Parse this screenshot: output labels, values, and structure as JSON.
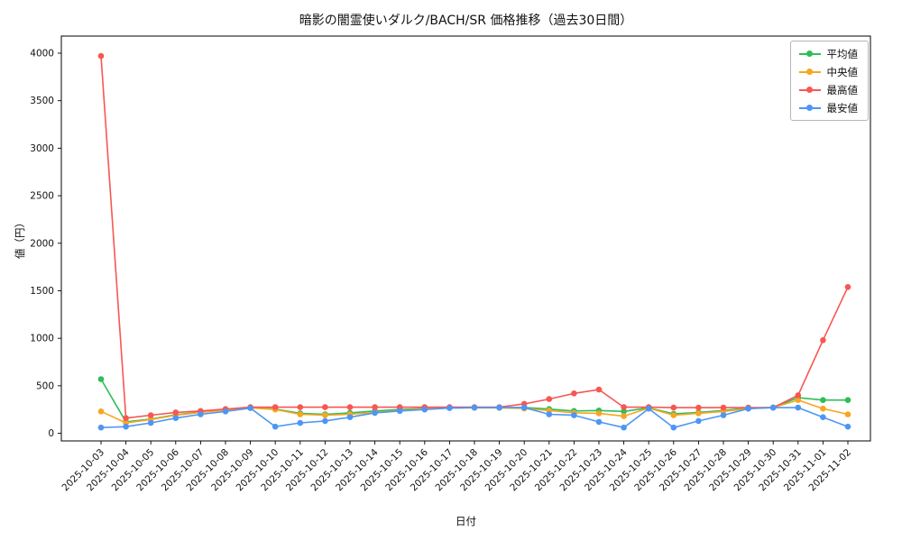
{
  "chart_data": {
    "type": "line",
    "title": "暗影の闇霊使いダルク/BACH/SR 価格推移（過去30日間）",
    "xlabel": "日付",
    "ylabel": "値（円）",
    "grid": false,
    "legend_position": "upper right",
    "ylim": [
      -80,
      4180
    ],
    "yticks": [
      0,
      500,
      1000,
      1500,
      2000,
      2500,
      3000,
      3500,
      4000
    ],
    "x": [
      "2025-10-03",
      "2025-10-04",
      "2025-10-05",
      "2025-10-06",
      "2025-10-07",
      "2025-10-08",
      "2025-10-09",
      "2025-10-10",
      "2025-10-11",
      "2025-10-12",
      "2025-10-13",
      "2025-10-14",
      "2025-10-15",
      "2025-10-16",
      "2025-10-17",
      "2025-10-18",
      "2025-10-19",
      "2025-10-20",
      "2025-10-21",
      "2025-10-22",
      "2025-10-23",
      "2025-10-24",
      "2025-10-25",
      "2025-10-26",
      "2025-10-27",
      "2025-10-28",
      "2025-10-29",
      "2025-10-30",
      "2025-10-31",
      "2025-11-01",
      "2025-11-02"
    ],
    "series": [
      {
        "name": "平均値",
        "color": "#2ebd59",
        "values": [
          570,
          120,
          150,
          195,
          225,
          250,
          270,
          255,
          210,
          200,
          215,
          235,
          250,
          262,
          270,
          270,
          270,
          272,
          255,
          235,
          240,
          230,
          268,
          205,
          220,
          240,
          265,
          272,
          375,
          350,
          350
        ]
      },
      {
        "name": "中央値",
        "color": "#f6a623",
        "values": [
          230,
          110,
          145,
          190,
          220,
          245,
          268,
          250,
          200,
          190,
          200,
          220,
          240,
          258,
          268,
          268,
          268,
          262,
          240,
          215,
          210,
          180,
          265,
          190,
          210,
          230,
          260,
          270,
          350,
          260,
          200
        ]
      },
      {
        "name": "最高値",
        "color": "#f85653",
        "values": [
          3970,
          160,
          190,
          220,
          235,
          255,
          275,
          275,
          275,
          275,
          275,
          275,
          275,
          275,
          275,
          275,
          275,
          310,
          360,
          420,
          460,
          275,
          275,
          270,
          270,
          270,
          270,
          270,
          400,
          980,
          1540
        ]
      },
      {
        "name": "最安値",
        "color": "#4d96f5",
        "values": [
          60,
          70,
          110,
          160,
          200,
          230,
          265,
          70,
          110,
          130,
          170,
          215,
          235,
          250,
          265,
          270,
          270,
          270,
          200,
          190,
          120,
          60,
          260,
          60,
          130,
          190,
          260,
          270,
          270,
          170,
          70
        ]
      }
    ]
  }
}
